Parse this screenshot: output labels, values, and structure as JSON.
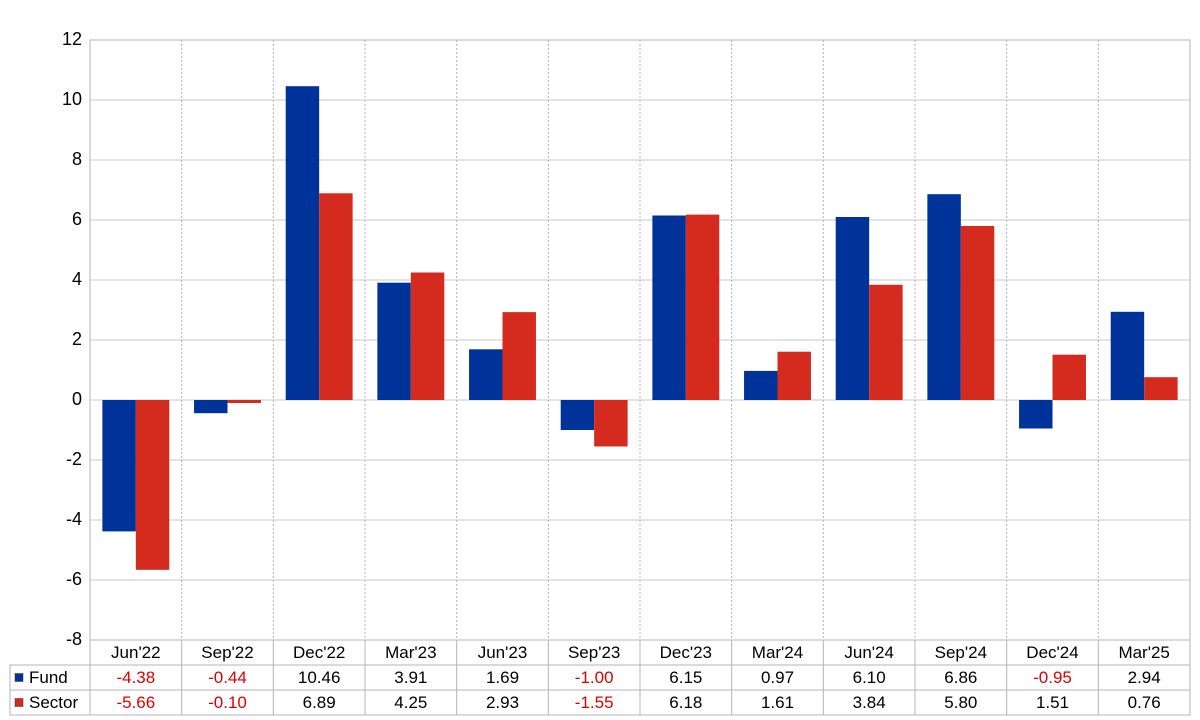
{
  "chart_data": {
    "type": "bar",
    "categories": [
      "Jun'22",
      "Sep'22",
      "Dec'22",
      "Mar'23",
      "Jun'23",
      "Sep'23",
      "Dec'23",
      "Mar'24",
      "Jun'24",
      "Sep'24",
      "Dec'24",
      "Mar'25"
    ],
    "series": [
      {
        "name": "Fund",
        "color": "#003399",
        "values": [
          -4.38,
          -0.44,
          10.46,
          3.91,
          1.69,
          -1.0,
          6.15,
          0.97,
          6.1,
          6.86,
          -0.95,
          2.94
        ],
        "value_labels": [
          "-4.38",
          "-0.44",
          "10.46",
          "3.91",
          "1.69",
          "-1.00",
          "6.15",
          "0.97",
          "6.10",
          "6.86",
          "-0.95",
          "2.94"
        ]
      },
      {
        "name": "Sector",
        "color": "#d52b1e",
        "values": [
          -5.66,
          -0.1,
          6.89,
          4.25,
          2.93,
          -1.55,
          6.18,
          1.61,
          3.84,
          5.8,
          1.51,
          0.76
        ],
        "value_labels": [
          "-5.66",
          "-0.10",
          "6.89",
          "4.25",
          "2.93",
          "-1.55",
          "6.18",
          "1.61",
          "3.84",
          "5.80",
          "1.51",
          "0.76"
        ]
      }
    ],
    "ylim": [
      -8,
      12
    ],
    "yticks": [
      -8,
      -6,
      -4,
      -2,
      0,
      2,
      4,
      6,
      8,
      10,
      12
    ],
    "grid": true
  }
}
